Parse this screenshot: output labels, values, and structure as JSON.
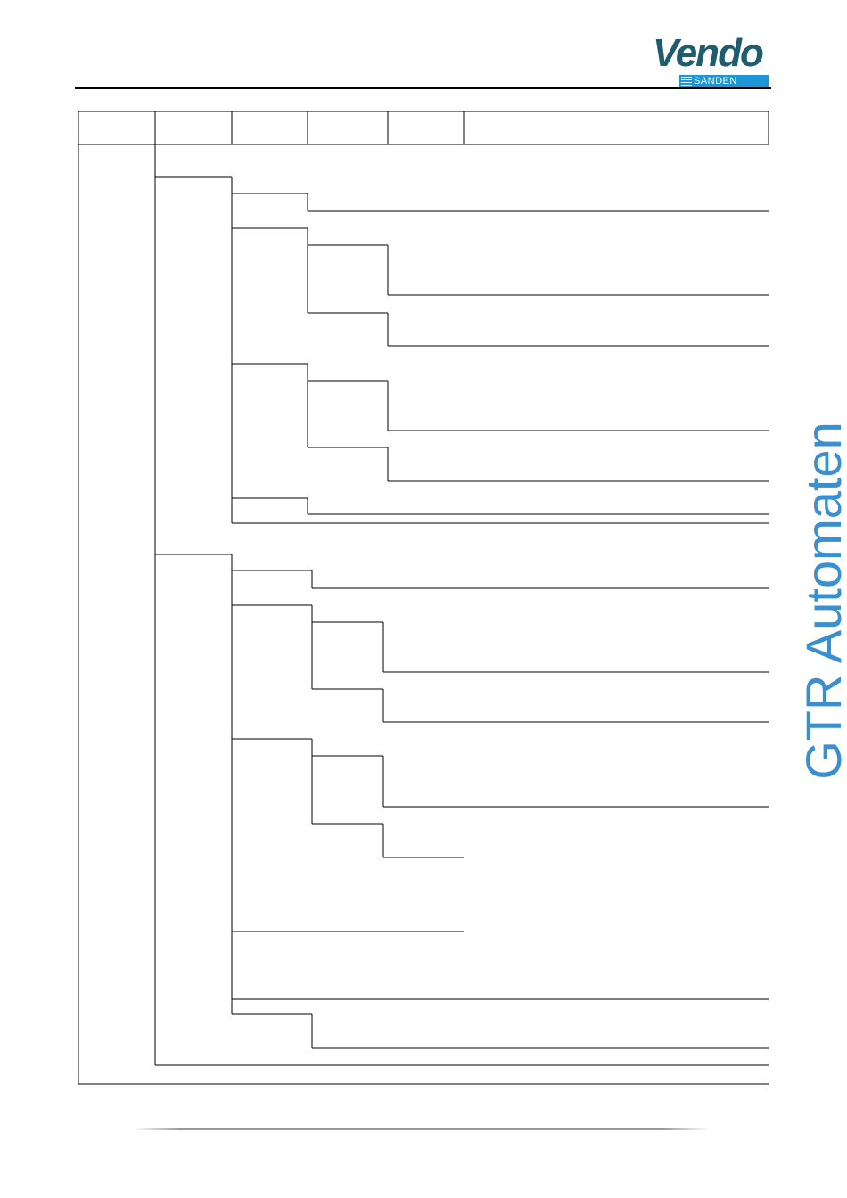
{
  "header": {
    "logo": {
      "wordmark": "Vendo",
      "subbrand": "SANDEN",
      "brand_color": "#1f5c6e",
      "bar_color": "#1d96d8"
    }
  },
  "sidebar": {
    "text": "GTR Automaten",
    "color": "#3a8fd0"
  },
  "table": {
    "column_headers": [
      "",
      "",
      "",
      "",
      "",
      ""
    ]
  }
}
